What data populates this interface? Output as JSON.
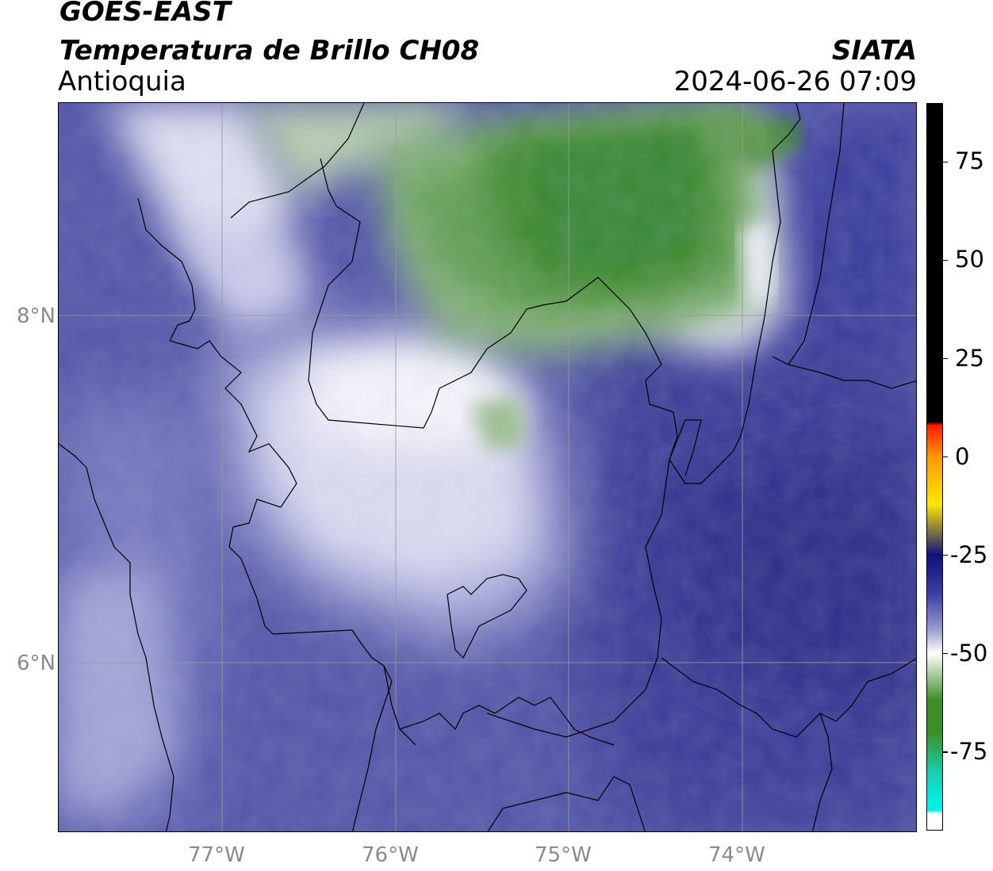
{
  "header": {
    "satellite": "GOES-EAST",
    "product": "Temperatura de Brillo CH08",
    "region": "Antioquia",
    "agency": "SIATA",
    "datetime": "2024-06-26 07:09"
  },
  "map": {
    "lat_labels": [
      "8°N",
      "6°N"
    ],
    "lon_labels": [
      "77°W",
      "76°W",
      "75°W",
      "74°W"
    ],
    "lon_range": [
      -77.94,
      -73.02
    ],
    "lat_range": [
      5.0,
      9.2
    ],
    "gridline_color": "#9a9a9a"
  },
  "colorbar": {
    "range": [
      -95,
      90
    ],
    "tick_labels": [
      "75",
      "50",
      "25",
      "0",
      "-25",
      "-50",
      "-75"
    ],
    "tick_values": [
      75,
      50,
      25,
      0,
      -25,
      -50,
      -75
    ],
    "colors": {
      "warm": "#000000",
      "hot": "#ff1a00",
      "orange": "#ff9900",
      "yellow": "#ffe600",
      "navy": "#10107a",
      "indigo": "#3d40a0",
      "lavender": "#9a9cd0",
      "white": "#ffffff",
      "green": "#3d8c26",
      "teal": "#1acca8",
      "cyan": "#00f0e8"
    }
  }
}
